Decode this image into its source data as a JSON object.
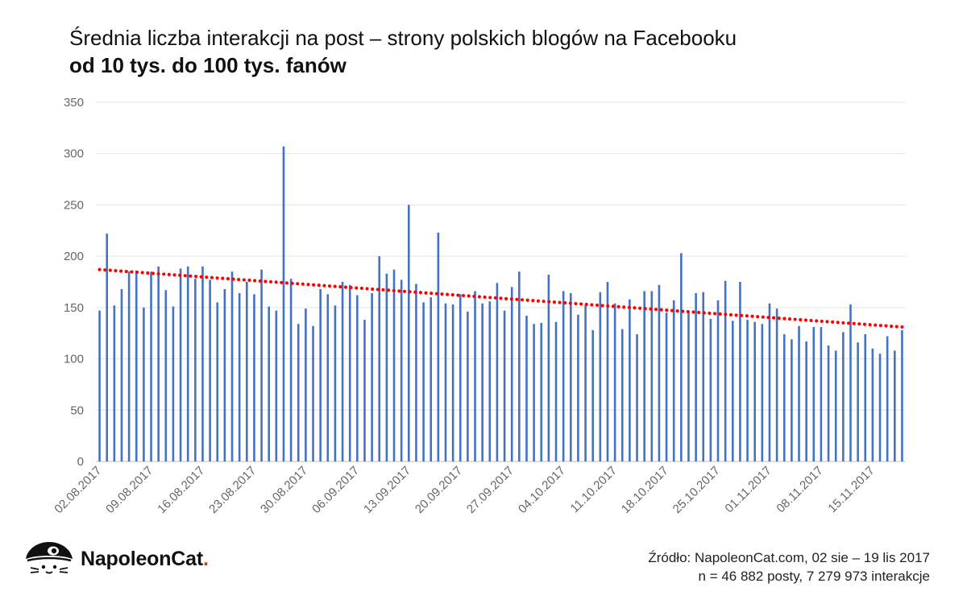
{
  "chart_data": {
    "type": "bar",
    "title": "Średnia liczba interakcji na post – strony polskich blogów na Facebooku",
    "subtitle": "od 10 tys. do 100 tys. fanów",
    "ylim": [
      0,
      350
    ],
    "yticks": [
      0,
      50,
      100,
      150,
      200,
      250,
      300,
      350
    ],
    "grid": true,
    "x_tick_labels": [
      "02.08.2017",
      "09.08.2017",
      "16.08.2017",
      "23.08.2017",
      "30.08.2017",
      "06.09.2017",
      "13.09.2017",
      "20.09.2017",
      "27.09.2017",
      "04.10.2017",
      "11.10.2017",
      "18.10.2017",
      "25.10.2017",
      "01.11.2017",
      "08.11.2017",
      "15.11.2017"
    ],
    "start_date": "02.08.2017",
    "end_date": "19.11.2017",
    "series": [
      {
        "name": "Średnia liczba interakcji na post",
        "color": "#4472c4",
        "values": [
          147,
          222,
          152,
          168,
          185,
          186,
          150,
          185,
          190,
          167,
          151,
          188,
          190,
          178,
          190,
          177,
          155,
          168,
          185,
          164,
          175,
          163,
          187,
          151,
          147,
          307,
          178,
          134,
          149,
          132,
          168,
          163,
          152,
          175,
          172,
          162,
          138,
          164,
          200,
          183,
          187,
          177,
          250,
          173,
          155,
          160,
          223,
          154,
          153,
          163,
          146,
          166,
          154,
          156,
          174,
          147,
          170,
          185,
          142,
          134,
          135,
          182,
          136,
          166,
          164,
          143,
          152,
          128,
          165,
          175,
          154,
          129,
          158,
          124,
          166,
          166,
          172,
          145,
          157,
          203,
          145,
          164,
          165,
          139,
          157,
          176,
          137,
          175,
          138,
          136,
          134,
          154,
          149,
          124,
          119,
          132,
          117,
          131,
          131,
          113,
          108,
          126,
          153,
          116,
          124,
          110,
          105,
          122,
          108,
          128
        ]
      },
      {
        "name": "Trend liniowy",
        "type": "trendline",
        "color": "#ff0000",
        "start_value": 187,
        "end_value": 131
      }
    ]
  },
  "footer": {
    "logo_text": "NapoleonCat",
    "logo_dot": ".",
    "source_line1": "Źródło: NapoleonCat.com, 02 sie – 19 lis 2017",
    "source_line2": "n = 46 882 posty, 7 279 973 interakcje"
  }
}
